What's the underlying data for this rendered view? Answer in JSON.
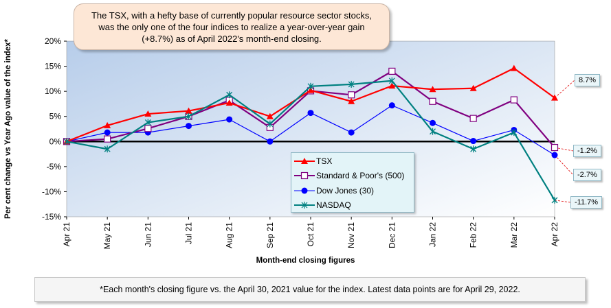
{
  "chart_data": {
    "type": "line",
    "title": "",
    "xlabel": "Month-end closing figures",
    "ylabel": "Per cent change vs Year Ago value of the index*",
    "ylim": [
      -15,
      20
    ],
    "y_ticks": [
      "20%",
      "15%",
      "10%",
      "5%",
      "0%",
      "-5%",
      "-10%",
      "-15%"
    ],
    "categories": [
      "Apr 21",
      "May 21",
      "Jun 21",
      "Jul 21",
      "Aug 21",
      "Sep 21",
      "Oct 21",
      "Nov 21",
      "Dec 21",
      "Jan 22",
      "Feb 22",
      "Mar 22",
      "Apr 22"
    ],
    "series": [
      {
        "name": "TSX",
        "color": "#ff0000",
        "marker": "triangle",
        "values": [
          0,
          3.2,
          5.5,
          6.1,
          7.7,
          5.0,
          10.2,
          8.0,
          11.1,
          10.4,
          10.6,
          14.6,
          8.7
        ]
      },
      {
        "name": "Standard & Poor's (500)",
        "color": "#800080",
        "marker": "square-open",
        "values": [
          0,
          0.5,
          2.6,
          5.0,
          8.2,
          2.8,
          10.1,
          9.3,
          14.0,
          8.0,
          4.6,
          8.3,
          -1.2
        ]
      },
      {
        "name": "Dow Jones (30)",
        "color": "#0000ff",
        "marker": "circle",
        "values": [
          0,
          1.8,
          1.8,
          3.1,
          4.4,
          0,
          5.7,
          1.8,
          7.2,
          3.7,
          0.1,
          2.3,
          -2.7
        ]
      },
      {
        "name": "NASDAQ",
        "color": "#008080",
        "marker": "star",
        "values": [
          0,
          -1.5,
          3.8,
          5.0,
          9.3,
          3.5,
          11.0,
          11.4,
          12.1,
          2.0,
          -1.5,
          1.8,
          -11.7
        ]
      }
    ],
    "end_labels": [
      "8.7%",
      "-1.2%",
      "-2.7%",
      "-11.7%"
    ],
    "legend_position": "center-bottom",
    "grid": false
  },
  "callout": "The TSX, with a hefty base of currently popular resource sector stocks, was the only one of the four indices to realize a year-over-year gain (+8.7%) as of April 2022's month-end closing.",
  "footnote": "*Each month's closing figure vs. the April 30, 2021 value for the index. Latest data points are for April 29, 2022."
}
